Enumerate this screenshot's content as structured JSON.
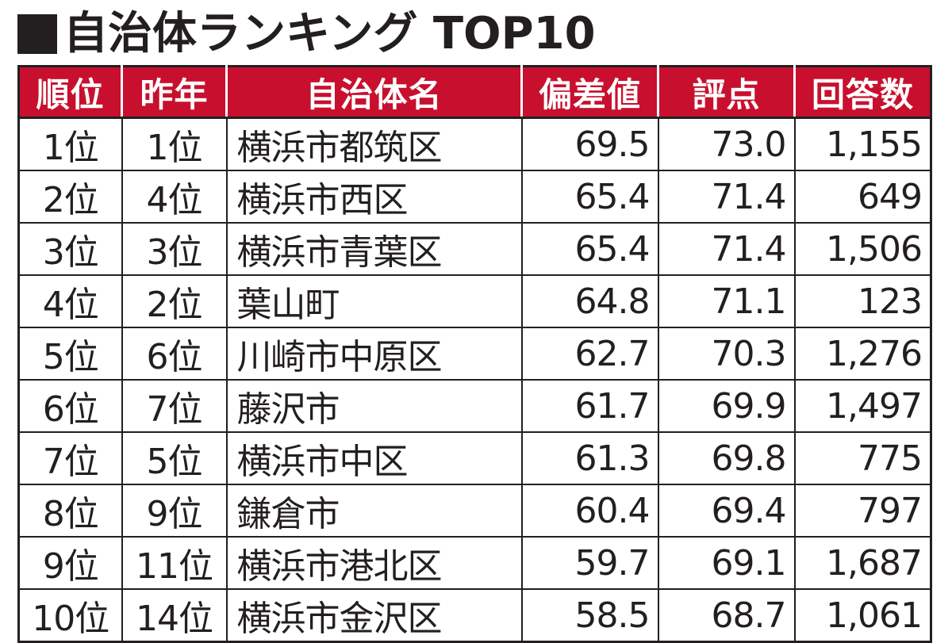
{
  "title": {
    "marker": "■",
    "text": "自治体ランキング TOP10"
  },
  "table": {
    "headers": {
      "rank": "順位",
      "prev": "昨年",
      "name": "自治体名",
      "deviation": "偏差値",
      "score": "評点",
      "responses": "回答数"
    },
    "rows": [
      {
        "rank": "1位",
        "prev": "1位",
        "name": "横浜市都筑区",
        "deviation": "69.5",
        "score": "73.0",
        "responses": "1,155"
      },
      {
        "rank": "2位",
        "prev": "4位",
        "name": "横浜市西区",
        "deviation": "65.4",
        "score": "71.4",
        "responses": "649"
      },
      {
        "rank": "3位",
        "prev": "3位",
        "name": "横浜市青葉区",
        "deviation": "65.4",
        "score": "71.4",
        "responses": "1,506"
      },
      {
        "rank": "4位",
        "prev": "2位",
        "name": "葉山町",
        "deviation": "64.8",
        "score": "71.1",
        "responses": "123"
      },
      {
        "rank": "5位",
        "prev": "6位",
        "name": "川崎市中原区",
        "deviation": "62.7",
        "score": "70.3",
        "responses": "1,276"
      },
      {
        "rank": "6位",
        "prev": "7位",
        "name": "藤沢市",
        "deviation": "61.7",
        "score": "69.9",
        "responses": "1,497"
      },
      {
        "rank": "7位",
        "prev": "5位",
        "name": "横浜市中区",
        "deviation": "61.3",
        "score": "69.8",
        "responses": "775"
      },
      {
        "rank": "8位",
        "prev": "9位",
        "name": "鎌倉市",
        "deviation": "60.4",
        "score": "69.4",
        "responses": "797"
      },
      {
        "rank": "9位",
        "prev": "11位",
        "name": "横浜市港北区",
        "deviation": "59.7",
        "score": "69.1",
        "responses": "1,687"
      },
      {
        "rank": "10位",
        "prev": "14位",
        "name": "横浜市金沢区",
        "deviation": "58.5",
        "score": "68.7",
        "responses": "1,061"
      }
    ]
  },
  "colors": {
    "header_bg": "#c8102e",
    "header_text": "#ffffff",
    "text": "#231f20",
    "border": "#231f20"
  }
}
